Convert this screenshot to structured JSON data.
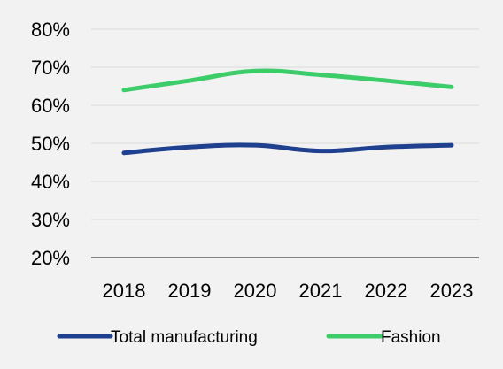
{
  "chart_data": {
    "type": "line",
    "title": "",
    "xlabel": "",
    "ylabel": "",
    "categories": [
      "2018",
      "2019",
      "2020",
      "2021",
      "2022",
      "2023"
    ],
    "ylim": [
      20,
      80
    ],
    "yticks": [
      20,
      30,
      40,
      50,
      60,
      70,
      80
    ],
    "ytick_labels": [
      "20%",
      "30%",
      "40%",
      "50%",
      "60%",
      "70%",
      "80%"
    ],
    "grid": "horizontal",
    "legend_position": "bottom",
    "series": [
      {
        "name": "Total manufacturing",
        "values": [
          47.5,
          49,
          49.5,
          48,
          49,
          49.5
        ],
        "color": "#1f3f8f"
      },
      {
        "name": "Fashion",
        "values": [
          64,
          66.5,
          69,
          68,
          66.5,
          64.8
        ],
        "color": "#3dcc6a"
      }
    ]
  },
  "colors": {
    "background": "#f2f2f2",
    "gridline": "#d9d9d9",
    "axis": "#404040"
  }
}
